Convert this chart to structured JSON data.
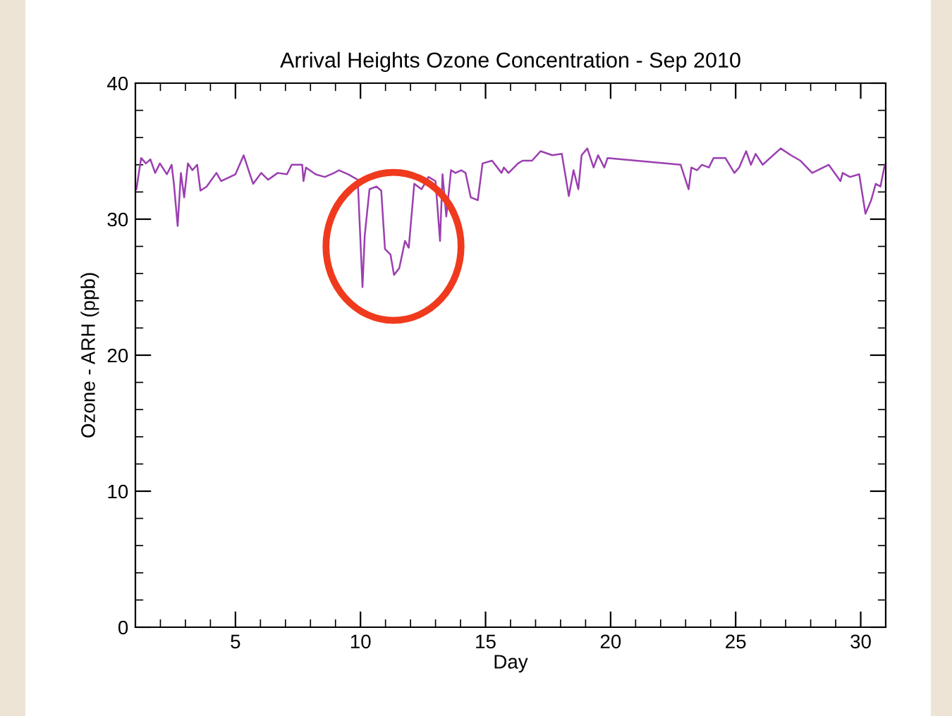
{
  "chart_data": {
    "type": "line",
    "title": "Arrival Heights Ozone Concentration - Sep 2010",
    "xlabel": "Day",
    "ylabel": "Ozone - ARH (ppb)",
    "xlim": [
      1,
      31
    ],
    "xticks": [
      5,
      10,
      15,
      20,
      25,
      30
    ],
    "ylim": [
      0,
      40
    ],
    "yticks": [
      0,
      10,
      20,
      30,
      40
    ],
    "grid": false,
    "legend": false,
    "marker": "none",
    "line_style": "solid",
    "series": [
      {
        "color": "#9b3fb0",
        "x": [
          1.04,
          1.23,
          1.42,
          1.6,
          1.79,
          1.98,
          2.26,
          2.45,
          2.54,
          2.69,
          2.82,
          2.95,
          3.1,
          3.28,
          3.47,
          3.6,
          3.85,
          4.24,
          4.43,
          5.0,
          5.33,
          5.56,
          5.71,
          6.03,
          6.31,
          6.69,
          7.06,
          7.25,
          7.67,
          7.72,
          7.82,
          8.2,
          8.57,
          8.95,
          9.14,
          9.51,
          9.89,
          10.08,
          10.17,
          10.36,
          10.64,
          10.83,
          10.98,
          11.2,
          11.34,
          11.55,
          11.78,
          11.93,
          12.15,
          12.44,
          12.72,
          13.0,
          13.18,
          13.28,
          13.43,
          13.62,
          13.8,
          14.03,
          14.2,
          14.41,
          14.69,
          14.88,
          15.26,
          15.64,
          15.73,
          15.92,
          16.3,
          16.48,
          16.86,
          17.2,
          17.67,
          18.05,
          18.33,
          18.52,
          18.71,
          18.84,
          19.07,
          19.32,
          19.5,
          19.75,
          19.88,
          22.8,
          23.12,
          23.23,
          23.46,
          23.65,
          23.93,
          24.12,
          24.59,
          24.95,
          25.14,
          25.42,
          25.61,
          25.8,
          26.08,
          26.8,
          27.21,
          27.59,
          28.06,
          28.72,
          29.19,
          29.28,
          29.57,
          29.94,
          30.19,
          30.42,
          30.6,
          30.79,
          30.94,
          31.0
        ],
        "values": [
          32.2,
          34.5,
          34.1,
          34.4,
          33.4,
          34.1,
          33.3,
          34.0,
          32.6,
          29.5,
          33.4,
          31.6,
          34.1,
          33.6,
          34.0,
          32.1,
          32.4,
          33.4,
          32.8,
          33.3,
          34.7,
          33.4,
          32.6,
          33.4,
          32.9,
          33.4,
          33.3,
          34.0,
          34.0,
          32.8,
          33.8,
          33.3,
          33.1,
          33.4,
          33.6,
          33.3,
          32.9,
          25.0,
          28.8,
          32.2,
          32.4,
          32.1,
          27.8,
          27.4,
          25.9,
          26.4,
          28.4,
          27.9,
          32.6,
          32.2,
          33.1,
          32.8,
          28.4,
          33.3,
          30.2,
          33.6,
          33.4,
          33.6,
          33.4,
          31.6,
          31.4,
          34.1,
          34.3,
          33.4,
          33.8,
          33.4,
          34.1,
          34.3,
          34.3,
          35.0,
          34.7,
          34.8,
          31.7,
          33.6,
          32.2,
          34.7,
          35.2,
          33.8,
          34.7,
          33.8,
          34.5,
          34.0,
          32.2,
          33.8,
          33.6,
          34.0,
          33.8,
          34.5,
          34.5,
          33.4,
          33.8,
          35.0,
          34.0,
          34.8,
          34.0,
          35.2,
          34.7,
          34.3,
          33.4,
          34.0,
          32.8,
          33.4,
          33.1,
          33.3,
          30.4,
          31.4,
          32.6,
          32.4,
          33.8,
          34.1
        ]
      }
    ]
  }
}
